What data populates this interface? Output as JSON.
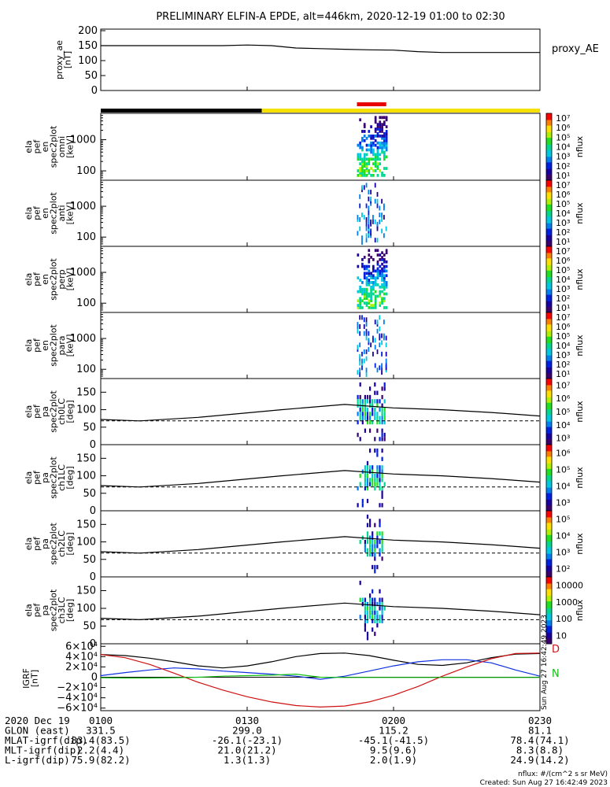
{
  "figure": {
    "title": "PRELIMINARY ELFIN-A EPDE, alt=446km, 2020-12-19 01:00 to 02:30",
    "flux_units_note": "nflux: #/(cm^2 s sr MeV)",
    "created_note": "Created: Sun Aug 27 16:42:49 2023",
    "side_stamp": "Sun Aug 27 16:42:49 2023"
  },
  "ae_panel": {
    "ylabel_lines": [
      "proxy_ae",
      "[nT]"
    ],
    "yticks": [
      "0",
      "50",
      "100",
      "150",
      "200"
    ],
    "legend": "proxy_AE"
  },
  "spectrogram_panels": [
    {
      "ylabel_lines": [
        "ela",
        "pef",
        "en",
        "spec2plot",
        "omni",
        "[keV]"
      ],
      "yticks": [
        "100",
        "1000"
      ],
      "cbar_label": "nflux",
      "cbar_ticks": [
        "10¹",
        "10²",
        "10³",
        "10⁴",
        "10⁵",
        "10⁶",
        "10⁷"
      ]
    },
    {
      "ylabel_lines": [
        "ela",
        "pef",
        "en",
        "spec2plot",
        "anti",
        "[keV]"
      ],
      "yticks": [
        "100",
        "1000"
      ],
      "cbar_label": "nflux",
      "cbar_ticks": [
        "10¹",
        "10²",
        "10³",
        "10⁴",
        "10⁵",
        "10⁶",
        "10⁷"
      ]
    },
    {
      "ylabel_lines": [
        "ela",
        "pef",
        "en",
        "spec2plot",
        "perp",
        "[keV]"
      ],
      "yticks": [
        "100",
        "1000"
      ],
      "cbar_label": "nflux",
      "cbar_ticks": [
        "10¹",
        "10²",
        "10³",
        "10⁴",
        "10⁵",
        "10⁶",
        "10⁷"
      ]
    },
    {
      "ylabel_lines": [
        "ela",
        "pef",
        "en",
        "spec2plot",
        "para",
        "[keV]"
      ],
      "yticks": [
        "100",
        "1000"
      ],
      "cbar_label": "nflux",
      "cbar_ticks": [
        "10¹",
        "10²",
        "10³",
        "10⁴",
        "10⁵",
        "10⁶",
        "10⁷"
      ]
    }
  ],
  "pitch_panels": [
    {
      "ylabel_lines": [
        "ela",
        "pef",
        "pa",
        "spec2plot",
        "ch0LC",
        "[deg]"
      ],
      "yticks": [
        "0",
        "50",
        "100",
        "150"
      ],
      "cbar_label": "nflux",
      "cbar_ticks": [
        "10³",
        "10⁴",
        "10⁵",
        "10⁶",
        "10⁷"
      ]
    },
    {
      "ylabel_lines": [
        "ela",
        "pef",
        "pa",
        "spec2plot",
        "ch1LC",
        "[deg]"
      ],
      "yticks": [
        "0",
        "50",
        "100",
        "150"
      ],
      "cbar_label": "nflux",
      "cbar_ticks": [
        "10³",
        "10⁴",
        "10⁵",
        "10⁶"
      ]
    },
    {
      "ylabel_lines": [
        "ela",
        "pef",
        "pa",
        "spec2plot",
        "ch2LC",
        "[deg]"
      ],
      "yticks": [
        "0",
        "50",
        "100",
        "150"
      ],
      "cbar_label": "nflux",
      "cbar_ticks": [
        "10²",
        "10³",
        "10⁴",
        "10⁵"
      ]
    },
    {
      "ylabel_lines": [
        "ela",
        "pef",
        "pa",
        "spec2plot",
        "ch3LC",
        "[deg]"
      ],
      "yticks": [
        "0",
        "50",
        "100",
        "150"
      ],
      "cbar_label": "nflux",
      "cbar_ticks": [
        "10",
        "100",
        "1000",
        "10000"
      ]
    }
  ],
  "igrf_panel": {
    "ylabel_lines": [
      "IGRF",
      "[nT]"
    ],
    "yticks": [
      "6×10⁴",
      "4×10⁴",
      "2×10⁴",
      "0",
      "−2×10⁴",
      "−4×10⁴",
      "−6×10⁴"
    ],
    "component_labels": [
      "D",
      "N"
    ]
  },
  "footer": {
    "rows": [
      {
        "label": "2020 Dec 19",
        "values": [
          "0100",
          "0130",
          "0200",
          "0230"
        ]
      },
      {
        "label": "GLON (east)",
        "values": [
          "331.5",
          "299.0",
          "115.2",
          "81.1"
        ]
      },
      {
        "label": "MLAT-igrf(dip)",
        "values": [
          "83.4(83.5)",
          "-26.1(-23.1)",
          "-45.1(-41.5)",
          "78.4(74.1)"
        ]
      },
      {
        "label": "MLT-igrf(dip)",
        "values": [
          "2.2(4.4)",
          "21.0(21.2)",
          "9.5(9.6)",
          "8.3(8.8)"
        ]
      },
      {
        "label": "L-igrf(dip)",
        "values": [
          "75.9(82.2)",
          "1.3(1.3)",
          "2.0(1.9)",
          "24.9(14.2)"
        ]
      }
    ]
  },
  "chart_data": {
    "type": "heatmap",
    "time_range": [
      "01:00",
      "02:30"
    ],
    "time_ticks": [
      "0100",
      "0130",
      "0200",
      "0230"
    ],
    "proxy_ae": {
      "ylim": [
        0,
        200
      ],
      "x_minutes": [
        0,
        5,
        10,
        15,
        20,
        25,
        30,
        35,
        40,
        45,
        50,
        55,
        60,
        65,
        70,
        75,
        80,
        85,
        90
      ],
      "values": [
        150,
        150,
        150,
        150,
        150,
        150,
        152,
        150,
        142,
        140,
        138,
        136,
        135,
        130,
        127,
        127,
        127,
        127,
        127
      ]
    },
    "spectrogram_energy_range_keV": [
      50,
      7000
    ],
    "pitch_angle_range_deg": [
      0,
      180
    ],
    "loss_cone_solid_deg": {
      "x_minutes": [
        0,
        8,
        20,
        37,
        50,
        60,
        70,
        80,
        90
      ],
      "values": [
        72,
        68,
        78,
        100,
        115,
        105,
        100,
        92,
        82
      ]
    },
    "loss_cone_dashed_deg": 68,
    "igrf": {
      "ylim": [
        -60000,
        60000
      ],
      "series": [
        {
          "name": "",
          "color": "#000000",
          "x_minutes": [
            0,
            5,
            10,
            15,
            20,
            25,
            30,
            35,
            40,
            45,
            50,
            55,
            60,
            65,
            70,
            75,
            80,
            85,
            90
          ],
          "values": [
            44000,
            42000,
            37000,
            30000,
            22000,
            18000,
            22000,
            30000,
            40000,
            46000,
            47000,
            42000,
            33000,
            25000,
            23000,
            28000,
            38000,
            45000,
            46000
          ]
        },
        {
          "name": "",
          "color": "#1030e0",
          "x_minutes": [
            0,
            5,
            10,
            15,
            20,
            25,
            30,
            35,
            40,
            45,
            50,
            55,
            60,
            65,
            70,
            75,
            80,
            85,
            90
          ],
          "values": [
            3000,
            9000,
            14000,
            18000,
            16000,
            12000,
            9000,
            6000,
            2000,
            -4000,
            2000,
            12000,
            22000,
            30000,
            34000,
            34000,
            28000,
            14000,
            2000
          ]
        },
        {
          "name": "",
          "color": "#d01010",
          "x_minutes": [
            0,
            5,
            10,
            15,
            20,
            25,
            30,
            35,
            40,
            45,
            50,
            55,
            60,
            65,
            70,
            75,
            80,
            85,
            90
          ],
          "values": [
            44000,
            38000,
            25000,
            8000,
            -10000,
            -25000,
            -38000,
            -48000,
            -55000,
            -58000,
            -56000,
            -48000,
            -35000,
            -18000,
            2000,
            20000,
            36000,
            46000,
            47000
          ]
        },
        {
          "name": "",
          "color": "#10c010",
          "x_minutes": [
            0,
            5,
            10,
            15,
            20,
            25,
            30,
            35,
            40,
            45,
            50,
            55,
            60,
            65,
            70,
            75,
            80,
            85,
            90
          ],
          "values": [
            -1000,
            -1500,
            -1500,
            -1000,
            0,
            2000,
            3000,
            4000,
            6000,
            0,
            -500,
            -500,
            -500,
            -500,
            -500,
            -500,
            -500,
            -500,
            -500
          ]
        }
      ]
    },
    "status_bar": [
      {
        "from_minute": 0,
        "to_minute": 33,
        "color": "#000000"
      },
      {
        "from_minute": 33,
        "to_minute": 90,
        "color": "#f5e000"
      }
    ],
    "science_zone_marker_minutes": [
      52.5,
      58.5
    ]
  }
}
